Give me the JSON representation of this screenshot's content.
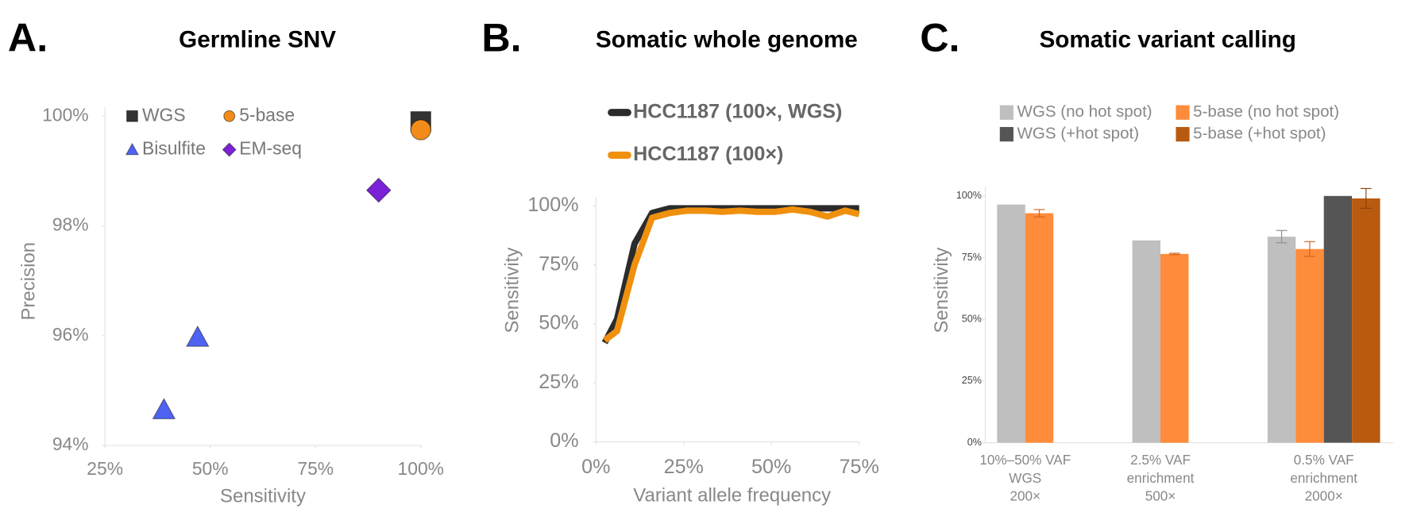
{
  "chart_data": [
    {
      "type": "scatter",
      "label": "A.",
      "title": "Germline SNV",
      "x_label": "Sensitivity",
      "y_label": "Precision",
      "xlim": [
        25,
        100
      ],
      "xticks": [
        {
          "value": 25,
          "label": "25%"
        },
        {
          "value": 50,
          "label": "50%"
        },
        {
          "value": 75,
          "label": "75%"
        },
        {
          "value": 100,
          "label": "100%"
        }
      ],
      "ylim": [
        94,
        100
      ],
      "yticks": [
        {
          "value": 94,
          "label": "94%"
        },
        {
          "value": 96,
          "label": "96%"
        },
        {
          "value": 98,
          "label": "98%"
        },
        {
          "value": 100,
          "label": "100%"
        }
      ],
      "series": [
        {
          "name": "WGS",
          "color": "#333333",
          "marker": "square",
          "x": [
            100
          ],
          "values": [
            99.9
          ]
        },
        {
          "name": "5-base",
          "color": "#f28c18",
          "marker": "circle",
          "x": [
            100
          ],
          "values": [
            99.75
          ]
        },
        {
          "name": "Bisulfite",
          "color": "#4f63f2",
          "marker": "triangle",
          "x": [
            39,
            47
          ],
          "values": [
            94.65,
            95.97
          ]
        },
        {
          "name": "EM-seq",
          "color": "#7b22d8",
          "marker": "diamond",
          "x": [
            90
          ],
          "values": [
            98.65
          ]
        }
      ]
    },
    {
      "type": "line",
      "label": "B.",
      "title": "Somatic whole genome",
      "x_label": "Variant allele frequency",
      "y_label": "Sensitivity",
      "xlim": [
        0,
        75
      ],
      "xticks": [
        {
          "value": 0,
          "label": "0%"
        },
        {
          "value": 25,
          "label": "25%"
        },
        {
          "value": 50,
          "label": "50%"
        },
        {
          "value": 75,
          "label": "75%"
        }
      ],
      "ylim": [
        0,
        100
      ],
      "yticks": [
        {
          "value": 0,
          "label": "0%"
        },
        {
          "value": 25,
          "label": "25%"
        },
        {
          "value": 50,
          "label": "50%"
        },
        {
          "value": 75,
          "label": "75%"
        },
        {
          "value": 100,
          "label": "100%"
        }
      ],
      "x": [
        2.5,
        6,
        11,
        16,
        21,
        26,
        31,
        36,
        41,
        46,
        51,
        56,
        61,
        66,
        71,
        75
      ],
      "series": [
        {
          "name": "HCC1187 (100×, WGS)",
          "color": "#2b2b2b",
          "values": [
            42,
            52,
            84,
            97,
            99,
            99,
            99,
            99,
            99,
            99,
            99,
            99,
            99,
            99,
            99,
            99
          ]
        },
        {
          "name": "HCC1187 (100×)",
          "color": "#f0900f",
          "values": [
            43,
            47,
            75,
            95,
            97,
            98,
            98,
            97.5,
            98,
            97.5,
            97.5,
            98.5,
            97.5,
            95.5,
            98,
            96.5
          ]
        }
      ]
    },
    {
      "type": "bar",
      "label": "C.",
      "title": "Somatic variant calling",
      "y_label": "Sensitivity",
      "categories": [
        [
          "10%–50% VAF",
          "WGS",
          "200×"
        ],
        [
          "2.5% VAF",
          "enrichment",
          "500×"
        ],
        [
          "0.5% VAF",
          "enrichment",
          "2000×"
        ]
      ],
      "ylim": [
        0,
        100
      ],
      "yticks": [
        {
          "value": 0,
          "label": "0%"
        },
        {
          "value": 25,
          "label": "25%"
        },
        {
          "value": 50,
          "label": "50%"
        },
        {
          "value": 75,
          "label": "75%"
        },
        {
          "value": 100,
          "label": "100%"
        }
      ],
      "series": [
        {
          "name": "WGS (no hot spot)",
          "color": "#bfbfbf",
          "error_color": "#8c8c8c",
          "values": [
            96.5,
            82,
            83.5
          ],
          "errors": [
            null,
            null,
            2.5
          ]
        },
        {
          "name": "5-base (no hot spot)",
          "color": "#ff8c3a",
          "error_color": "#d0601a",
          "values": [
            93,
            76.5,
            78.5
          ],
          "errors": [
            1.5,
            0.3,
            3
          ]
        },
        {
          "name": "WGS (+hot spot)",
          "color": "#555555",
          "error_color": "#333333",
          "values": [
            null,
            null,
            100
          ],
          "errors": [
            null,
            null,
            null
          ]
        },
        {
          "name": "5-base (+hot spot)",
          "color": "#b85a10",
          "error_color": "#8a4008",
          "values": [
            null,
            null,
            99
          ],
          "errors": [
            null,
            null,
            4
          ]
        }
      ]
    }
  ]
}
